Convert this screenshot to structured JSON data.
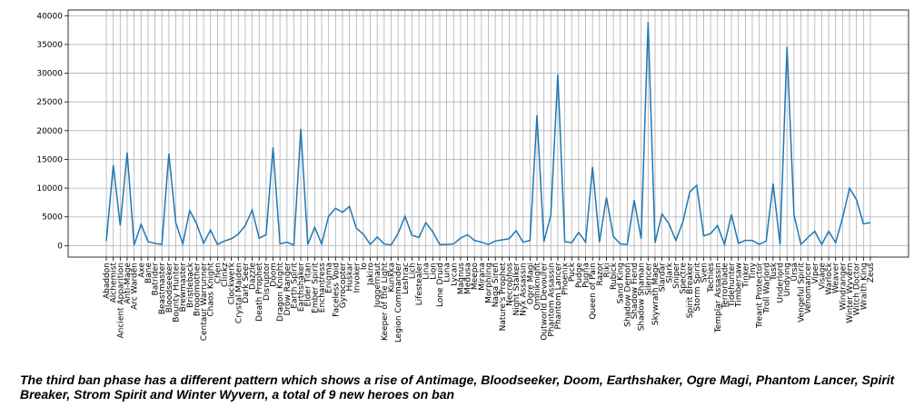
{
  "chart_data": {
    "type": "line",
    "categories": [
      "Abaddon",
      "Alchemist",
      "Ancient Apparition",
      "Anti-Mage",
      "Arc Warden",
      "Axe",
      "Bane",
      "Batrider",
      "Beastmaster",
      "Bloodseeker",
      "Bounty Hunter",
      "Brewmaster",
      "Bristleback",
      "Broodmother",
      "Centaur Warrunner",
      "Chaos Knight",
      "Chen",
      "Clinkz",
      "Clockwerk",
      "Crystal Maiden",
      "Dark Seer",
      "Dazzle",
      "Death Prophet",
      "Disruptor",
      "Doom",
      "Dragon Knight",
      "Drow Ranger",
      "Earth Spirit",
      "Earthshaker",
      "Elder Titan",
      "Ember Spirit",
      "Enchantress",
      "Enigma",
      "Faceless Void",
      "Gyrocopter",
      "Huskar",
      "Invoker",
      "Io",
      "Jakiro",
      "Juggernaut",
      "Keeper of the Light",
      "Kunkka",
      "Legion Commander",
      "Leshrac",
      "Lich",
      "Lifestealer",
      "Lina",
      "Lion",
      "Lone Druid",
      "Luna",
      "Lycan",
      "Magnus",
      "Medusa",
      "Meepo",
      "Mirana",
      "Morphling",
      "Naga Siren",
      "Nature's Prophet",
      "Necrophos",
      "Night Stalker",
      "Nyx Assassin",
      "Ogre Magi",
      "Omniknight",
      "Outworld Devourer",
      "Phantom Assassin",
      "Phantom Lancer",
      "Phoenix",
      "Puck",
      "Pudge",
      "Pugna",
      "Queen of Pain",
      "Razor",
      "Riki",
      "Rubick",
      "Sand King",
      "Shadow Demon",
      "Shadow Fiend",
      "Shadow Shaman",
      "Silencer",
      "Skywrath Mage",
      "Slardar",
      "Slark",
      "Sniper",
      "Spectre",
      "Spirit Breaker",
      "Storm Spirit",
      "Sven",
      "Techies",
      "Templar Assassin",
      "Terrorblade",
      "Tidehunter",
      "Timbersaw",
      "Tinker",
      "Tiny",
      "Treant Protector",
      "Troll Warlord",
      "Tusk",
      "Underlord",
      "Undying",
      "Ursa",
      "Vengeful Spirit",
      "Venomancer",
      "Viper",
      "Visage",
      "Warlock",
      "Weaver",
      "Windranger",
      "Winter Wyvern",
      "Witch Doctor",
      "Wraith King",
      "Zeus"
    ],
    "values": [
      800,
      14000,
      3500,
      16200,
      100,
      3700,
      700,
      400,
      200,
      16000,
      4000,
      300,
      6100,
      3800,
      400,
      2700,
      200,
      800,
      1200,
      2000,
      3500,
      6200,
      1300,
      1900,
      17100,
      300,
      600,
      100,
      20300,
      200,
      3200,
      300,
      5100,
      6500,
      5800,
      6800,
      3000,
      2000,
      200,
      1500,
      300,
      100,
      2100,
      5100,
      1800,
      1400,
      4000,
      2400,
      200,
      200,
      300,
      1300,
      1900,
      900,
      600,
      200,
      800,
      1000,
      1200,
      2600,
      600,
      900,
      22700,
      700,
      5300,
      29800,
      700,
      500,
      2300,
      600,
      13700,
      600,
      8400,
      1600,
      300,
      200,
      7900,
      1200,
      38900,
      500,
      5500,
      3800,
      900,
      4100,
      9300,
      10500,
      1700,
      2100,
      3500,
      200,
      5400,
      400,
      900,
      900,
      200,
      800,
      10800,
      200,
      34600,
      5400,
      200,
      1400,
      2500,
      200,
      2500,
      500,
      4800,
      10000,
      8000,
      3800,
      4000
    ],
    "color": "#1f77b4",
    "ylim": [
      -2000,
      41000
    ],
    "yticks": [
      0,
      5000,
      10000,
      15000,
      20000,
      25000,
      30000,
      35000,
      40000
    ],
    "grid": true
  },
  "caption": "The third ban phase has a different pattern which shows a rise of Antimage, Bloodseeker, Doom, Earthshaker, Ogre Magi, Phantom Lancer, Spirit Breaker, Strom Spirit and Winter Wyvern, a total of 9 new heroes on ban"
}
